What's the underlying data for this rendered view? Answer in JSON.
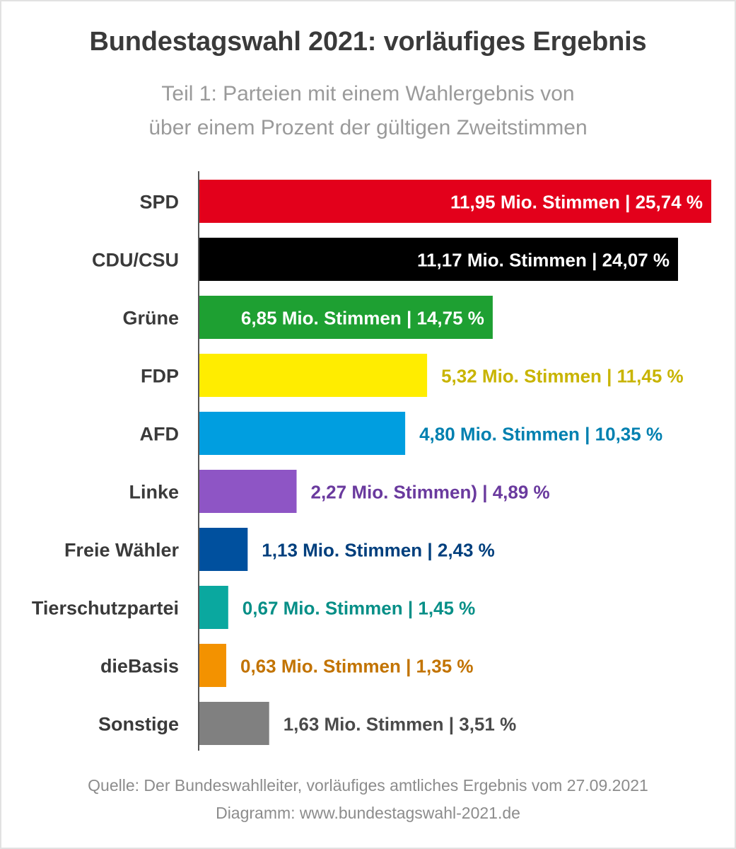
{
  "title": "Bundestagswahl 2021: vorläufiges Ergebnis",
  "subtitle_line1": "Teil 1: Parteien mit einem Wahlergebnis von",
  "subtitle_line2": "über einem Prozent der gültigen Zweitstimmen",
  "source_line1": "Quelle: Der Bundeswahlleiter, vorläufiges amtliches Ergebnis vom 27.09.2021",
  "source_line2": "Diagramm: www.bundestagswahl-2021.de",
  "chart_data": {
    "type": "bar",
    "orientation": "horizontal",
    "title": "Bundestagswahl 2021: vorläufiges Ergebnis",
    "unit": "%",
    "xlim": [
      0,
      25.74
    ],
    "grid": false,
    "categories": [
      "SPD",
      "CDU/CSU",
      "Grüne",
      "FDP",
      "AFD",
      "Linke",
      "Freie Wähler",
      "Tierschutzpartei",
      "dieBasis",
      "Sonstige"
    ],
    "values": [
      25.74,
      24.07,
      14.75,
      11.45,
      10.35,
      4.89,
      2.43,
      1.45,
      1.35,
      3.51
    ],
    "votes_millions": [
      11.95,
      11.17,
      6.85,
      5.32,
      4.8,
      2.27,
      1.13,
      0.67,
      0.63,
      1.63
    ],
    "data_labels": [
      "11,95 Mio. Stimmen | 25,74 %",
      "11,17 Mio. Stimmen | 24,07 %",
      "6,85 Mio. Stimmen | 14,75 %",
      "5,32 Mio. Stimmen | 11,45 %",
      "4,80 Mio. Stimmen | 10,35 %",
      "2,27 Mio. Stimmen) | 4,89 %",
      "1,13 Mio. Stimmen | 2,43 %",
      "0,67 Mio. Stimmen | 1,45 %",
      "0,63 Mio. Stimmen | 1,35 %",
      "1,63 Mio. Stimmen | 3,51 %"
    ],
    "bar_colors": [
      "#e3001b",
      "#000000",
      "#1ea032",
      "#ffed00",
      "#009ee0",
      "#8e55c5",
      "#00509e",
      "#0aa89f",
      "#f39200",
      "#808080"
    ],
    "label_colors": [
      "#ffffff",
      "#ffffff",
      "#ffffff",
      "#c8b400",
      "#0080b0",
      "#6a3a9e",
      "#003f7d",
      "#078f87",
      "#c27300",
      "#4a4a4a"
    ],
    "label_inside": [
      true,
      true,
      true,
      false,
      false,
      false,
      false,
      false,
      false,
      false
    ],
    "category_label_color": "#3a3a3a"
  }
}
